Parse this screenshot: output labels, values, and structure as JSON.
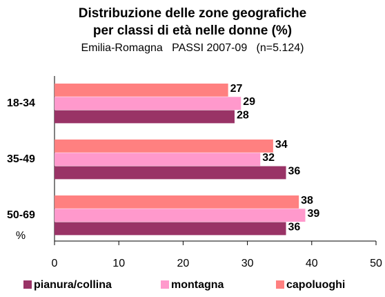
{
  "chart_data": {
    "type": "bar",
    "orientation": "horizontal",
    "title": [
      "Distribuzione delle zone geografiche",
      "per classi di età nelle donne (%)"
    ],
    "subtitle": "Emilia-Romagna   PASSI 2007-09   (n=5.124)",
    "x_label": "%",
    "categories": [
      "18-34",
      "35-49",
      "50-69"
    ],
    "series": [
      {
        "name": "pianura/collina",
        "color": "#993366",
        "values": [
          28,
          36,
          36
        ]
      },
      {
        "name": "montagna",
        "color": "#FF99CC",
        "values": [
          29,
          32,
          39
        ]
      },
      {
        "name": "capoluoghi",
        "color": "#FF8080",
        "values": [
          27,
          34,
          38
        ]
      }
    ],
    "xlim": [
      0,
      50
    ],
    "xticks": [
      0,
      10,
      20,
      30,
      40,
      50
    ],
    "legend": "bottom"
  }
}
